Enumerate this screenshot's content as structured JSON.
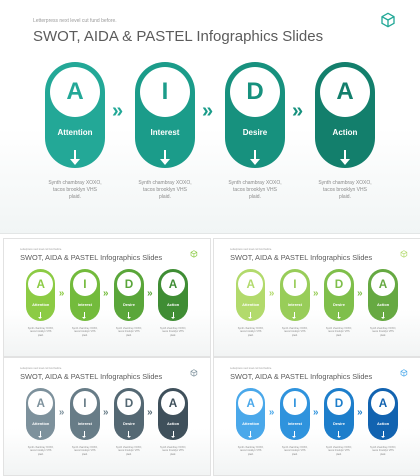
{
  "pre_title": "Letterpress next level cut fund before.",
  "title": "SWOT, AIDA & PASTEL Infographics Slides",
  "logo_icon": "cube-icon",
  "steps": [
    {
      "letter": "A",
      "label": "Attention"
    },
    {
      "letter": "I",
      "label": "Interest"
    },
    {
      "letter": "D",
      "label": "Desire"
    },
    {
      "letter": "A",
      "label": "Action"
    }
  ],
  "descriptions": [
    [
      "Synth chambray XOXO,",
      "tacos brooklyn VHS",
      "plaid."
    ],
    [
      "Synth chambray XOXO,",
      "tacos brooklyn VHS",
      "plaid."
    ],
    [
      "Synth chambray XOXO,",
      "tacos brooklyn VHS",
      "plaid."
    ],
    [
      "Synth chambray XOXO,",
      "tacos brooklyn VHS",
      "plaid."
    ]
  ],
  "chevron": "»",
  "themes": [
    {
      "name": "teal",
      "colors": [
        "#23a897",
        "#1b9c8a",
        "#17917e",
        "#137f6c"
      ]
    },
    {
      "name": "green",
      "colors": [
        "#8ccb44",
        "#73bb3c",
        "#5aa63a",
        "#3f8d34"
      ]
    },
    {
      "name": "light-green",
      "colors": [
        "#b2da6c",
        "#98cd59",
        "#7fbf4b",
        "#66a942"
      ]
    },
    {
      "name": "gray",
      "colors": [
        "#7d919c",
        "#677c87",
        "#546873",
        "#3f505b"
      ]
    },
    {
      "name": "blue",
      "colors": [
        "#4aa8ea",
        "#2f93dd",
        "#1d7ecb",
        "#1263b0"
      ]
    }
  ]
}
